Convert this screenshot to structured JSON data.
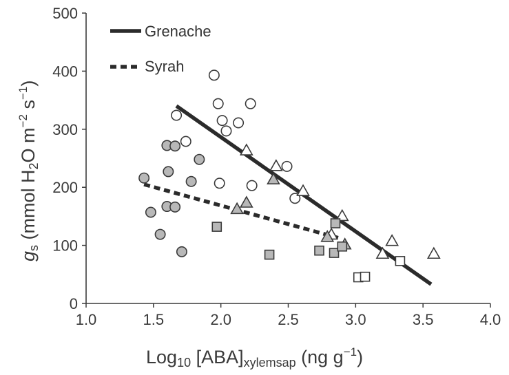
{
  "chart_data": {
    "type": "scatter",
    "xlabel": {
      "main": "Log",
      "sub1": "10",
      "mid": " [ABA]",
      "sub2": "xylemsap",
      "unit_open": " (ng g",
      "unit_exp": "−1",
      "unit_close": ")"
    },
    "ylabel": {
      "sym": "g",
      "sym_sub": "s",
      "pre": " (mmol H",
      "h2o_sub": "2",
      "mid": "O m",
      "exp1": "−2",
      "mid2": " s",
      "exp2": "−1",
      "close": ")"
    },
    "xlim": [
      1.0,
      4.0
    ],
    "ylim": [
      0,
      500
    ],
    "xticks": [
      "1.0",
      "1.5",
      "2.0",
      "2.5",
      "3.0",
      "3.5",
      "4.0"
    ],
    "yticks": [
      "0",
      "100",
      "200",
      "300",
      "400",
      "500"
    ],
    "legend": {
      "placement": "top-left",
      "entries": [
        {
          "label": "Grenache",
          "style": "solid"
        },
        {
          "label": "Syrah",
          "style": "dashed"
        }
      ]
    },
    "lines": [
      {
        "name": "Grenache",
        "style": "solid",
        "x": [
          1.67,
          3.56
        ],
        "y": [
          340,
          33
        ]
      },
      {
        "name": "Syrah",
        "style": "dashed",
        "x": [
          1.43,
          2.87
        ],
        "y": [
          205,
          113
        ]
      }
    ],
    "series": [
      {
        "marker": "circle",
        "fill": "#ffffff",
        "points": [
          [
            1.95,
            393
          ],
          [
            1.98,
            344
          ],
          [
            2.22,
            344
          ],
          [
            2.01,
            315
          ],
          [
            2.04,
            297
          ],
          [
            2.13,
            311
          ],
          [
            1.67,
            324
          ],
          [
            1.74,
            279
          ],
          [
            1.99,
            207
          ],
          [
            2.23,
            203
          ],
          [
            2.49,
            236
          ],
          [
            2.55,
            181
          ]
        ]
      },
      {
        "marker": "circle",
        "fill": "#b8b8b8",
        "points": [
          [
            1.6,
            272
          ],
          [
            1.66,
            271
          ],
          [
            1.84,
            248
          ],
          [
            1.61,
            227
          ],
          [
            1.78,
            210
          ],
          [
            1.43,
            216
          ],
          [
            1.6,
            167
          ],
          [
            1.66,
            166
          ],
          [
            1.48,
            157
          ],
          [
            1.55,
            119
          ],
          [
            1.71,
            89
          ]
        ]
      },
      {
        "marker": "triangle",
        "fill": "#ffffff",
        "points": [
          [
            2.19,
            263
          ],
          [
            2.41,
            236
          ],
          [
            2.61,
            193
          ],
          [
            2.9,
            150
          ],
          [
            2.82,
            118
          ],
          [
            3.27,
            107
          ],
          [
            3.2,
            85
          ],
          [
            3.58,
            85
          ]
        ]
      },
      {
        "marker": "triangle",
        "fill": "#b8b8b8",
        "points": [
          [
            2.39,
            213
          ],
          [
            2.19,
            173
          ],
          [
            2.12,
            162
          ],
          [
            2.79,
            114
          ],
          [
            2.92,
            101
          ]
        ]
      },
      {
        "marker": "square",
        "fill": "#b8b8b8",
        "points": [
          [
            1.97,
            132
          ],
          [
            2.36,
            84
          ],
          [
            2.73,
            91
          ],
          [
            2.84,
            87
          ],
          [
            2.85,
            138
          ],
          [
            2.9,
            98
          ]
        ]
      },
      {
        "marker": "square",
        "fill": "#ffffff",
        "points": [
          [
            3.02,
            45
          ],
          [
            3.07,
            46
          ],
          [
            3.33,
            73
          ]
        ]
      }
    ],
    "grid": false
  }
}
